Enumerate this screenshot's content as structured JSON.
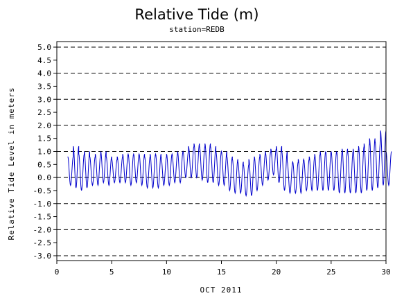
{
  "chart_data": {
    "type": "line",
    "title": "Relative Tide (m)",
    "subtitle": "station=REDB",
    "ylabel": "Relative Tide Level in meters",
    "xlabel": "OCT 2011",
    "xlim": [
      0,
      30
    ],
    "ylim": [
      -3.0,
      5.0
    ],
    "x_ticks": [
      "0",
      "5",
      "10",
      "15",
      "20",
      "25",
      "30"
    ],
    "y_ticks": [
      "5.0",
      "4.5",
      "4.0",
      "3.5",
      "3.0",
      "2.5",
      "2.0",
      "1.5",
      "1.0",
      "0.5",
      "0.0",
      "-0.5",
      "-1.0",
      "-1.5",
      "-2.0",
      "-2.5",
      "-3.0"
    ],
    "dashed_gridlines_y": [
      5.0,
      4.0,
      3.0,
      2.0,
      1.0,
      0.0,
      -1.0,
      -2.0,
      -3.0
    ],
    "grid": "horizontal dashed",
    "series_color": "#0000cc",
    "series": [
      {
        "name": "",
        "x": [
          1.0,
          1.5,
          2.0,
          2.5,
          3.0,
          3.5,
          4.0,
          4.5,
          5.0,
          5.5,
          6.0,
          6.5,
          7.0,
          7.5,
          8.0,
          8.5,
          9.0,
          9.5,
          10.0,
          10.5,
          11.0,
          11.5,
          12.0,
          12.5,
          13.0,
          13.5,
          14.0,
          14.5,
          15.0,
          15.5,
          16.0,
          16.5,
          17.0,
          17.5,
          18.0,
          18.5,
          19.0,
          19.5,
          20.0,
          20.5,
          21.0,
          21.5,
          22.0,
          22.5,
          23.0,
          23.5,
          24.0,
          24.5,
          25.0,
          25.5,
          26.0,
          26.5,
          27.0,
          27.5,
          28.0,
          28.5,
          29.0,
          29.5,
          30.0
        ],
        "high": [
          0.8,
          1.2,
          0.9,
          1.0,
          0.8,
          0.9,
          1.0,
          0.8,
          0.7,
          0.8,
          0.9,
          0.9,
          0.9,
          0.9,
          0.8,
          0.9,
          0.9,
          0.8,
          0.9,
          0.9,
          1.0,
          1.0,
          1.2,
          1.3,
          1.2,
          1.3,
          1.2,
          1.0,
          1.0,
          0.8,
          0.7,
          0.6,
          0.5,
          0.7,
          0.8,
          0.9,
          1.0,
          1.1,
          1.2,
          1.0,
          0.6,
          0.6,
          0.7,
          0.7,
          0.8,
          0.9,
          1.0,
          1.0,
          1.0,
          1.0,
          1.1,
          1.0,
          1.1,
          1.2,
          1.3,
          1.5,
          1.4,
          1.8,
          1.0
        ],
        "low": [
          -0.3,
          -0.4,
          -0.5,
          -0.4,
          -0.3,
          -0.3,
          -0.2,
          -0.3,
          -0.2,
          -0.2,
          -0.2,
          -0.3,
          -0.2,
          -0.3,
          -0.4,
          -0.4,
          -0.4,
          -0.3,
          -0.3,
          -0.2,
          -0.2,
          0.0,
          0.0,
          0.0,
          -0.1,
          -0.2,
          -0.2,
          -0.3,
          -0.3,
          -0.5,
          -0.6,
          -0.6,
          -0.7,
          -0.7,
          -0.5,
          -0.3,
          -0.1,
          0.1,
          -0.2,
          -0.5,
          -0.6,
          -0.6,
          -0.6,
          -0.5,
          -0.5,
          -0.5,
          -0.5,
          -0.5,
          -0.5,
          -0.6,
          -0.6,
          -0.6,
          -0.6,
          -0.6,
          -0.5,
          -0.5,
          -0.4,
          -0.3,
          -0.3
        ]
      }
    ]
  }
}
